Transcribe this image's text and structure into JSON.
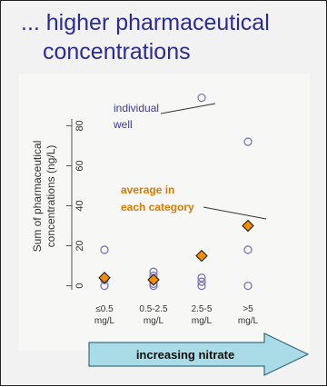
{
  "slide": {
    "title_line1": "... higher pharmaceutical",
    "title_line2": "concentrations",
    "arrow_label": "increasing nitrate",
    "colors": {
      "title": "#2b2b9a",
      "annotation_blue": "#3a3aa0",
      "annotation_orange": "#d97a00",
      "average_fill": "#f28c00",
      "circle_stroke": "#7777bb",
      "arrow_fill": "#a9dce6"
    }
  },
  "chart_data": {
    "type": "scatter",
    "ylabel_line1": "Sum of pharmaceutical",
    "ylabel_line2": "concentrations (ng/L)",
    "categories": [
      {
        "line1": "≤0.5",
        "line2": "mg/L"
      },
      {
        "line1": "0.5-2.5",
        "line2": "mg/L"
      },
      {
        "line1": "2.5-5",
        "line2": "mg/L"
      },
      {
        "line1": ">5",
        "line2": "mg/L"
      }
    ],
    "yticks": [
      0,
      20,
      40,
      60,
      80
    ],
    "ylim": [
      -2,
      97
    ],
    "individual_wells": [
      {
        "cat": 0,
        "y": 18
      },
      {
        "cat": 0,
        "y": 3
      },
      {
        "cat": 0,
        "y": 0
      },
      {
        "cat": 1,
        "y": 7
      },
      {
        "cat": 1,
        "y": 5
      },
      {
        "cat": 1,
        "y": 3
      },
      {
        "cat": 1,
        "y": 1
      },
      {
        "cat": 1,
        "y": 0
      },
      {
        "cat": 2,
        "y": 94
      },
      {
        "cat": 2,
        "y": 4
      },
      {
        "cat": 2,
        "y": 2
      },
      {
        "cat": 2,
        "y": 0
      },
      {
        "cat": 3,
        "y": 72
      },
      {
        "cat": 3,
        "y": 18
      },
      {
        "cat": 3,
        "y": 0
      }
    ],
    "averages": [
      4,
      3,
      15,
      30
    ],
    "annotations": {
      "individual_line1": "individual",
      "individual_line2": "well",
      "average_line1": "average in",
      "average_line2": "each category"
    }
  }
}
